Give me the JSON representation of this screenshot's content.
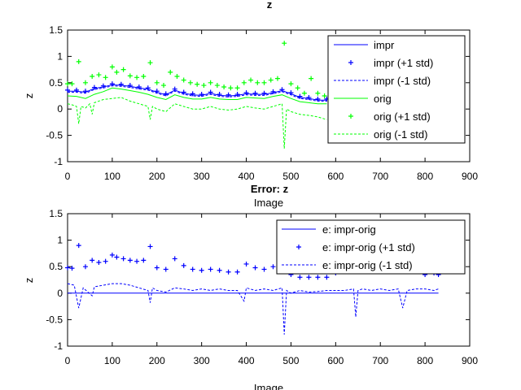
{
  "chart_data": [
    {
      "type": "line",
      "title": "z",
      "xlabel": "Image",
      "ylabel": "z",
      "xlim": [
        0,
        900
      ],
      "ylim": [
        -1,
        1.5
      ],
      "xticks": [
        "0",
        "100",
        "200",
        "300",
        "400",
        "500",
        "600",
        "700",
        "800",
        "900"
      ],
      "yticks": [
        "-1",
        "-0.5",
        "0",
        "0.5",
        "1",
        "1.5"
      ],
      "legend_position": "top-right",
      "series": [
        {
          "name": "impr",
          "color": "#0000ff",
          "style": "solid",
          "x": [
            0,
            20,
            40,
            60,
            80,
            100,
            120,
            140,
            160,
            180,
            200,
            220,
            240,
            260,
            280,
            300,
            320,
            340,
            360,
            380,
            400,
            420,
            440,
            460,
            480,
            500,
            520,
            540,
            560,
            580
          ],
          "y": [
            0.34,
            0.34,
            0.32,
            0.39,
            0.42,
            0.46,
            0.45,
            0.43,
            0.4,
            0.38,
            0.32,
            0.27,
            0.36,
            0.3,
            0.27,
            0.26,
            0.3,
            0.26,
            0.25,
            0.26,
            0.29,
            0.28,
            0.28,
            0.31,
            0.35,
            0.29,
            0.22,
            0.2,
            0.17,
            0.17
          ]
        },
        {
          "name": "impr (+1 std)",
          "color": "#0000ff",
          "style": "marker-plus",
          "x": [
            0,
            20,
            40,
            60,
            80,
            100,
            120,
            140,
            160,
            180,
            200,
            220,
            240,
            260,
            280,
            300,
            320,
            340,
            360,
            380,
            400,
            420,
            440,
            460,
            480,
            500,
            520,
            540,
            560,
            580
          ],
          "y": [
            0.36,
            0.36,
            0.34,
            0.41,
            0.44,
            0.48,
            0.47,
            0.45,
            0.42,
            0.4,
            0.34,
            0.29,
            0.38,
            0.32,
            0.29,
            0.28,
            0.32,
            0.28,
            0.27,
            0.28,
            0.31,
            0.3,
            0.3,
            0.33,
            0.37,
            0.31,
            0.24,
            0.22,
            0.19,
            0.19
          ]
        },
        {
          "name": "impr (-1 std)",
          "color": "#0000ff",
          "style": "dashed",
          "x": [
            0,
            20,
            40,
            60,
            80,
            100,
            120,
            140,
            160,
            180,
            200,
            220,
            240,
            260,
            280,
            300,
            320,
            340,
            360,
            380,
            400,
            420,
            440,
            460,
            480,
            500,
            520,
            540,
            560,
            580
          ],
          "y": [
            0.32,
            0.32,
            0.3,
            0.37,
            0.4,
            0.44,
            0.43,
            0.41,
            0.38,
            0.36,
            0.3,
            0.25,
            0.34,
            0.28,
            0.25,
            0.24,
            0.28,
            0.24,
            0.23,
            0.24,
            0.27,
            0.26,
            0.26,
            0.29,
            0.33,
            0.27,
            0.2,
            0.18,
            0.15,
            0.15
          ]
        },
        {
          "name": "orig",
          "color": "#00ff00",
          "style": "solid",
          "x": [
            0,
            20,
            40,
            60,
            80,
            100,
            120,
            140,
            160,
            180,
            200,
            220,
            240,
            260,
            280,
            300,
            320,
            340,
            360,
            380,
            400,
            420,
            440,
            460,
            480,
            500,
            520,
            540,
            560,
            580
          ],
          "y": [
            0.25,
            0.24,
            0.2,
            0.28,
            0.33,
            0.4,
            0.38,
            0.35,
            0.32,
            0.28,
            0.22,
            0.18,
            0.27,
            0.22,
            0.19,
            0.19,
            0.22,
            0.19,
            0.18,
            0.18,
            0.22,
            0.21,
            0.2,
            0.24,
            0.27,
            0.2,
            0.14,
            0.12,
            0.1,
            0.1
          ]
        },
        {
          "name": "orig (+1 std)",
          "color": "#00ff00",
          "style": "marker-plus",
          "x": [
            0,
            10,
            25,
            40,
            55,
            70,
            85,
            100,
            110,
            125,
            140,
            155,
            170,
            185,
            200,
            215,
            230,
            245,
            260,
            275,
            290,
            305,
            320,
            335,
            350,
            365,
            380,
            395,
            410,
            425,
            440,
            455,
            470,
            485,
            500,
            515,
            530,
            545,
            560,
            575
          ],
          "y": [
            0.48,
            0.48,
            0.9,
            0.5,
            0.62,
            0.65,
            0.6,
            0.8,
            0.7,
            0.75,
            0.63,
            0.6,
            0.62,
            0.88,
            0.5,
            0.45,
            0.7,
            0.62,
            0.55,
            0.5,
            0.47,
            0.45,
            0.5,
            0.45,
            0.42,
            0.4,
            0.4,
            0.5,
            0.55,
            0.5,
            0.5,
            0.55,
            0.58,
            1.25,
            0.48,
            0.4,
            0.3,
            0.58,
            0.3,
            0.25
          ]
        },
        {
          "name": "orig (-1 std)",
          "color": "#00ff00",
          "style": "dashed",
          "x": [
            0,
            10,
            20,
            25,
            30,
            40,
            50,
            55,
            60,
            80,
            100,
            120,
            140,
            160,
            180,
            185,
            190,
            200,
            220,
            240,
            260,
            280,
            300,
            320,
            340,
            360,
            380,
            400,
            420,
            440,
            460,
            480,
            485,
            490,
            500,
            520,
            540,
            560,
            580
          ],
          "y": [
            0.1,
            0.08,
            0.05,
            -0.28,
            0.05,
            0.02,
            0.1,
            -0.1,
            0.12,
            0.18,
            0.2,
            0.22,
            0.15,
            0.1,
            0.05,
            -0.2,
            0.05,
            0.0,
            -0.05,
            0.1,
            0.05,
            0.0,
            0.0,
            0.05,
            0.0,
            -0.02,
            0.0,
            0.05,
            0.02,
            0.0,
            0.05,
            0.1,
            -0.75,
            0.0,
            -0.05,
            -0.1,
            -0.12,
            -0.15,
            -0.2
          ]
        }
      ]
    },
    {
      "type": "line",
      "title": "Error: z",
      "xlabel": "Image",
      "ylabel": "z",
      "xlim": [
        0,
        900
      ],
      "ylim": [
        -1,
        1.5
      ],
      "xticks": [
        "0",
        "100",
        "200",
        "300",
        "400",
        "500",
        "600",
        "700",
        "800",
        "900"
      ],
      "yticks": [
        "-1",
        "-0.5",
        "0",
        "0.5",
        "1",
        "1.5"
      ],
      "legend_position": "top-right",
      "series": [
        {
          "name": "e: impr-orig",
          "color": "#0000ff",
          "style": "solid",
          "x": [
            0,
            830
          ],
          "y": [
            0.0,
            0.0
          ]
        },
        {
          "name": "e: impr-orig (+1 std)",
          "color": "#0000ff",
          "style": "marker-plus",
          "x": [
            0,
            10,
            25,
            40,
            55,
            70,
            85,
            100,
            110,
            125,
            140,
            155,
            170,
            185,
            200,
            220,
            240,
            260,
            280,
            300,
            320,
            340,
            360,
            380,
            400,
            420,
            440,
            460,
            480,
            500,
            520,
            540,
            560,
            580,
            600,
            620,
            640,
            660,
            680,
            700,
            720,
            740,
            760,
            780,
            800,
            820,
            830
          ],
          "y": [
            0.48,
            0.47,
            0.9,
            0.5,
            0.62,
            0.58,
            0.6,
            0.72,
            0.68,
            0.65,
            0.62,
            0.6,
            0.62,
            0.88,
            0.48,
            0.45,
            0.65,
            0.52,
            0.45,
            0.43,
            0.45,
            0.43,
            0.4,
            0.4,
            0.55,
            0.48,
            0.45,
            0.5,
            0.5,
            0.35,
            0.3,
            0.3,
            0.3,
            0.3,
            0.38,
            0.45,
            0.5,
            0.55,
            0.5,
            0.48,
            0.5,
            0.48,
            0.52,
            0.5,
            0.35,
            0.38,
            0.35
          ]
        },
        {
          "name": "e: impr-orig (-1 std)",
          "color": "#0000ff",
          "style": "dashed",
          "x": [
            0,
            15,
            25,
            35,
            55,
            60,
            80,
            100,
            120,
            140,
            160,
            180,
            185,
            190,
            200,
            220,
            240,
            260,
            280,
            300,
            320,
            340,
            360,
            380,
            395,
            400,
            420,
            440,
            460,
            480,
            485,
            490,
            500,
            520,
            540,
            560,
            580,
            600,
            620,
            640,
            645,
            650,
            660,
            680,
            700,
            720,
            740,
            750,
            760,
            780,
            800,
            820,
            830
          ],
          "y": [
            0.18,
            0.15,
            -0.28,
            0.1,
            -0.05,
            0.12,
            0.15,
            0.18,
            0.18,
            0.15,
            0.1,
            0.05,
            -0.18,
            0.1,
            0.05,
            0.02,
            0.1,
            0.08,
            0.05,
            0.08,
            0.05,
            0.08,
            0.05,
            0.05,
            -0.15,
            0.1,
            0.05,
            0.08,
            0.05,
            0.1,
            -0.78,
            0.05,
            0.0,
            0.05,
            0.02,
            0.03,
            0.05,
            0.05,
            0.05,
            0.08,
            -0.45,
            0.05,
            0.08,
            0.05,
            0.08,
            0.05,
            0.08,
            -0.28,
            0.05,
            0.08,
            0.08,
            0.05,
            0.08
          ]
        }
      ]
    }
  ]
}
